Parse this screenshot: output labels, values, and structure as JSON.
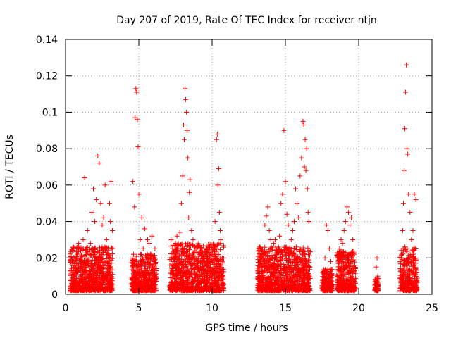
{
  "chart_data": {
    "type": "scatter",
    "title": "Day 207 of 2019, Rate Of TEC Index for receiver ntjn",
    "xlabel": "GPS time / hours",
    "ylabel": "ROTI / TECUs",
    "xlim": [
      0,
      25
    ],
    "ylim": [
      0,
      0.14
    ],
    "xticks": [
      0,
      5,
      10,
      15,
      20,
      25
    ],
    "xtick_labels": [
      "0",
      "5",
      "10",
      "15",
      "20",
      "25"
    ],
    "yticks": [
      0,
      0.02,
      0.04,
      0.06,
      0.08,
      0.1,
      0.12,
      0.14
    ],
    "ytick_labels": [
      "0",
      "0.02",
      "0.04",
      "0.06",
      "0.08",
      "0.1",
      "0.12",
      "0.14"
    ],
    "grid": true,
    "marker": "+",
    "color": "#ff0000",
    "series": [
      {
        "name": "ROTI",
        "points": [
          [
            0.4,
            0.008
          ],
          [
            0.5,
            0.012
          ],
          [
            0.6,
            0.006
          ],
          [
            0.7,
            0.015
          ],
          [
            0.8,
            0.022
          ],
          [
            0.9,
            0.028
          ],
          [
            1.0,
            0.01
          ],
          [
            1.1,
            0.018
          ],
          [
            1.2,
            0.03
          ],
          [
            1.3,
            0.064
          ],
          [
            1.4,
            0.025
          ],
          [
            1.5,
            0.035
          ],
          [
            1.6,
            0.02
          ],
          [
            1.7,
            0.028
          ],
          [
            1.8,
            0.045
          ],
          [
            1.9,
            0.058
          ],
          [
            2.0,
            0.04
          ],
          [
            2.1,
            0.052
          ],
          [
            2.2,
            0.076
          ],
          [
            2.3,
            0.072
          ],
          [
            2.4,
            0.05
          ],
          [
            2.5,
            0.038
          ],
          [
            2.6,
            0.042
          ],
          [
            2.7,
            0.06
          ],
          [
            2.8,
            0.03
          ],
          [
            2.9,
            0.022
          ],
          [
            3.0,
            0.05
          ],
          [
            3.1,
            0.062
          ],
          [
            3.2,
            0.035
          ],
          [
            3.05,
            0.04
          ],
          [
            4.6,
            0.062
          ],
          [
            4.7,
            0.048
          ],
          [
            4.75,
            0.097
          ],
          [
            4.8,
            0.113
          ],
          [
            4.85,
            0.111
          ],
          [
            4.9,
            0.096
          ],
          [
            4.95,
            0.081
          ],
          [
            5.0,
            0.055
          ],
          [
            5.1,
            0.03
          ],
          [
            5.2,
            0.042
          ],
          [
            5.3,
            0.025
          ],
          [
            5.4,
            0.036
          ],
          [
            5.5,
            0.02
          ],
          [
            5.6,
            0.03
          ],
          [
            5.7,
            0.028
          ],
          [
            5.8,
            0.022
          ],
          [
            5.9,
            0.032
          ],
          [
            6.0,
            0.018
          ],
          [
            6.1,
            0.025
          ],
          [
            7.2,
            0.03
          ],
          [
            7.3,
            0.025
          ],
          [
            7.4,
            0.02
          ],
          [
            7.5,
            0.028
          ],
          [
            7.6,
            0.032
          ],
          [
            7.7,
            0.027
          ],
          [
            7.8,
            0.034
          ],
          [
            7.9,
            0.05
          ],
          [
            8.0,
            0.065
          ],
          [
            8.05,
            0.093
          ],
          [
            8.1,
            0.085
          ],
          [
            8.15,
            0.113
          ],
          [
            8.2,
            0.107
          ],
          [
            8.25,
            0.1
          ],
          [
            8.3,
            0.09
          ],
          [
            8.35,
            0.075
          ],
          [
            8.4,
            0.042
          ],
          [
            8.45,
            0.056
          ],
          [
            8.5,
            0.063
          ],
          [
            8.6,
            0.035
          ],
          [
            8.7,
            0.03
          ],
          [
            8.8,
            0.02
          ],
          [
            8.9,
            0.025
          ],
          [
            9.0,
            0.018
          ],
          [
            9.2,
            0.015
          ],
          [
            9.4,
            0.012
          ],
          [
            9.6,
            0.025
          ],
          [
            9.8,
            0.02
          ],
          [
            10.0,
            0.022
          ],
          [
            10.2,
            0.04
          ],
          [
            10.3,
            0.085
          ],
          [
            10.35,
            0.088
          ],
          [
            10.4,
            0.06
          ],
          [
            10.45,
            0.069
          ],
          [
            10.5,
            0.045
          ],
          [
            10.55,
            0.035
          ],
          [
            10.6,
            0.03
          ],
          [
            10.7,
            0.02
          ],
          [
            13.2,
            0.015
          ],
          [
            13.3,
            0.018
          ],
          [
            13.4,
            0.02
          ],
          [
            13.5,
            0.022
          ],
          [
            13.6,
            0.038
          ],
          [
            13.7,
            0.043
          ],
          [
            13.8,
            0.048
          ],
          [
            13.9,
            0.035
          ],
          [
            14.0,
            0.03
          ],
          [
            14.1,
            0.025
          ],
          [
            14.2,
            0.028
          ],
          [
            14.3,
            0.03
          ],
          [
            14.4,
            0.02
          ],
          [
            14.5,
            0.018
          ],
          [
            14.6,
            0.032
          ],
          [
            14.7,
            0.05
          ],
          [
            14.8,
            0.055
          ],
          [
            14.9,
            0.09
          ],
          [
            15.0,
            0.062
          ],
          [
            15.1,
            0.044
          ],
          [
            15.2,
            0.038
          ],
          [
            15.3,
            0.025
          ],
          [
            15.4,
            0.03
          ],
          [
            15.5,
            0.035
          ],
          [
            15.6,
            0.04
          ],
          [
            15.7,
            0.058
          ],
          [
            15.8,
            0.05
          ],
          [
            15.9,
            0.042
          ],
          [
            16.0,
            0.065
          ],
          [
            16.1,
            0.075
          ],
          [
            16.2,
            0.095
          ],
          [
            16.25,
            0.093
          ],
          [
            16.3,
            0.07
          ],
          [
            16.35,
            0.085
          ],
          [
            16.4,
            0.068
          ],
          [
            16.45,
            0.08
          ],
          [
            16.5,
            0.058
          ],
          [
            16.55,
            0.045
          ],
          [
            16.6,
            0.04
          ],
          [
            17.6,
            0.012
          ],
          [
            17.7,
            0.02
          ],
          [
            17.8,
            0.038
          ],
          [
            17.9,
            0.035
          ],
          [
            18.0,
            0.025
          ],
          [
            18.1,
            0.018
          ],
          [
            18.6,
            0.02
          ],
          [
            18.7,
            0.025
          ],
          [
            18.8,
            0.03
          ],
          [
            18.9,
            0.028
          ],
          [
            19.0,
            0.035
          ],
          [
            19.1,
            0.04
          ],
          [
            19.2,
            0.048
          ],
          [
            19.3,
            0.045
          ],
          [
            19.4,
            0.038
          ],
          [
            19.5,
            0.042
          ],
          [
            19.6,
            0.03
          ],
          [
            19.7,
            0.022
          ],
          [
            21.1,
            0.005
          ],
          [
            21.15,
            0.008
          ],
          [
            21.2,
            0.015
          ],
          [
            21.25,
            0.02
          ],
          [
            21.3,
            0.01
          ],
          [
            22.9,
            0.02
          ],
          [
            23.0,
            0.035
          ],
          [
            23.05,
            0.05
          ],
          [
            23.1,
            0.068
          ],
          [
            23.15,
            0.091
          ],
          [
            23.2,
            0.111
          ],
          [
            23.25,
            0.126
          ],
          [
            23.3,
            0.08
          ],
          [
            23.35,
            0.077
          ],
          [
            23.4,
            0.055
          ],
          [
            23.5,
            0.045
          ],
          [
            23.6,
            0.03
          ],
          [
            23.7,
            0.035
          ],
          [
            23.8,
            0.055
          ],
          [
            23.9,
            0.052
          ]
        ],
        "dense_clusters": [
          {
            "x_range": [
              0.3,
              3.2
            ],
            "y_range": [
              0.002,
              0.026
            ]
          },
          {
            "x_range": [
              4.5,
              6.2
            ],
            "y_range": [
              0.002,
              0.022
            ]
          },
          {
            "x_range": [
              7.1,
              10.8
            ],
            "y_range": [
              0.002,
              0.028
            ]
          },
          {
            "x_range": [
              13.1,
              16.7
            ],
            "y_range": [
              0.002,
              0.026
            ]
          },
          {
            "x_range": [
              17.5,
              18.2
            ],
            "y_range": [
              0.002,
              0.014
            ]
          },
          {
            "x_range": [
              18.5,
              19.8
            ],
            "y_range": [
              0.002,
              0.024
            ]
          },
          {
            "x_range": [
              21.1,
              21.35
            ],
            "y_range": [
              0.002,
              0.009
            ]
          },
          {
            "x_range": [
              22.8,
              24.0
            ],
            "y_range": [
              0.002,
              0.026
            ]
          }
        ]
      }
    ]
  }
}
